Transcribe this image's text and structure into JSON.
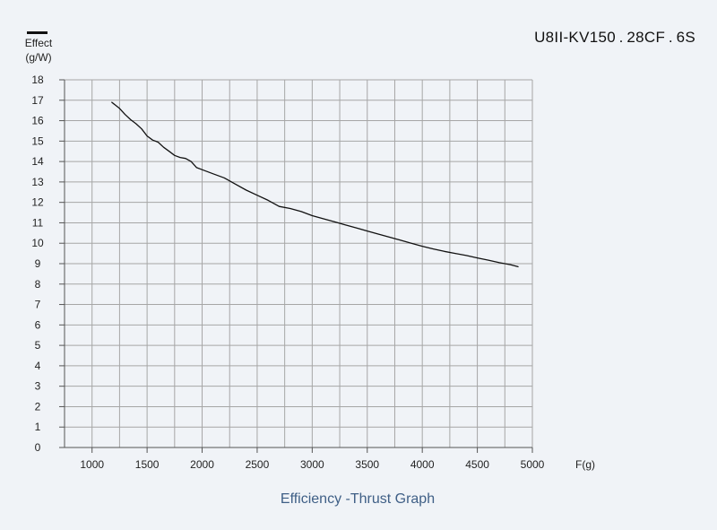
{
  "model_label": "U8II-KV150 . 28CF . 6S",
  "caption": "Efficiency -Thrust Graph",
  "colors": {
    "background": "#f0f3f7",
    "grid": "#a6a6a6",
    "line": "#111111",
    "caption": "#3f5f86"
  },
  "chart_data": {
    "type": "line",
    "title": "Efficiency -Thrust Graph",
    "xlabel": "F(g)",
    "ylabel": [
      "Effect",
      "(g/W)"
    ],
    "xlim": [
      750,
      5000
    ],
    "ylim": [
      0,
      18
    ],
    "x_ticks": [
      1000,
      1500,
      2000,
      2500,
      3000,
      3500,
      4000,
      4500,
      5000
    ],
    "y_ticks": [
      0,
      1,
      2,
      3,
      4,
      5,
      6,
      7,
      8,
      9,
      10,
      11,
      12,
      13,
      14,
      15,
      16,
      17,
      18
    ],
    "x_gridlines": [
      1000,
      1250,
      1500,
      1750,
      2000,
      2250,
      2500,
      2750,
      3000,
      3250,
      3500,
      3750,
      4000,
      4250,
      4500,
      4750,
      5000
    ],
    "grid": true,
    "series": [
      {
        "name": "U8II-KV150 . 28CF . 6S",
        "x": [
          1180,
          1250,
          1300,
          1350,
          1400,
          1450,
          1500,
          1550,
          1600,
          1650,
          1700,
          1750,
          1800,
          1850,
          1900,
          1950,
          2000,
          2100,
          2200,
          2300,
          2400,
          2500,
          2600,
          2700,
          2800,
          2900,
          3000,
          3100,
          3200,
          3300,
          3400,
          3500,
          3600,
          3700,
          3800,
          3900,
          4000,
          4100,
          4200,
          4300,
          4400,
          4500,
          4600,
          4700,
          4800,
          4870
        ],
        "y": [
          16.9,
          16.6,
          16.3,
          16.05,
          15.85,
          15.6,
          15.25,
          15.05,
          14.95,
          14.7,
          14.5,
          14.3,
          14.2,
          14.15,
          14.0,
          13.7,
          13.6,
          13.4,
          13.2,
          12.9,
          12.6,
          12.35,
          12.1,
          11.8,
          11.7,
          11.55,
          11.35,
          11.2,
          11.05,
          10.9,
          10.75,
          10.6,
          10.45,
          10.3,
          10.15,
          10.0,
          9.85,
          9.72,
          9.6,
          9.5,
          9.4,
          9.28,
          9.17,
          9.05,
          8.95,
          8.85
        ]
      }
    ]
  }
}
